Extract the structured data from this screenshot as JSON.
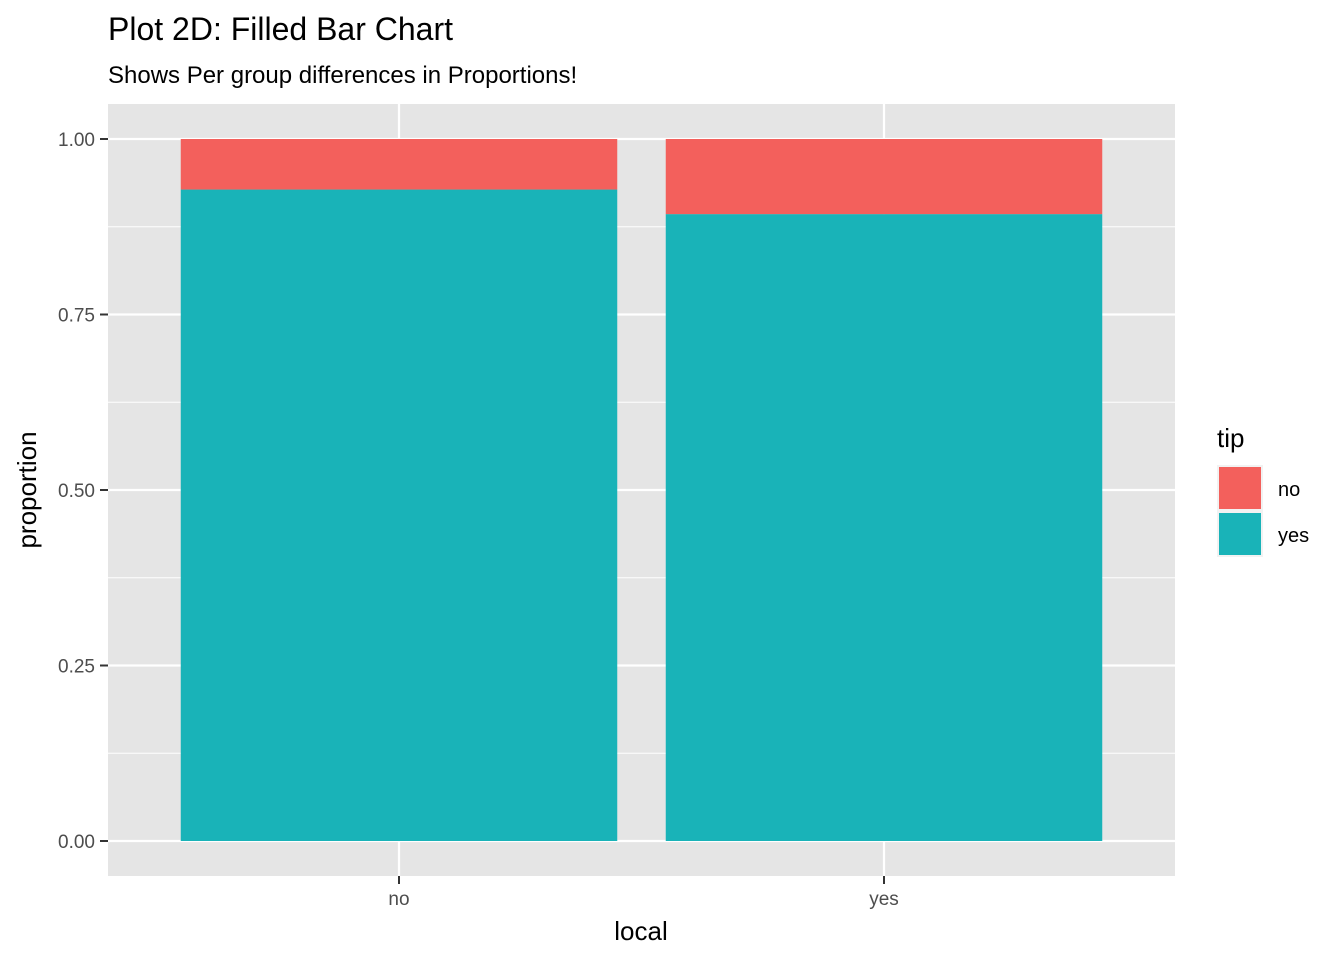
{
  "chart_data": {
    "type": "bar",
    "stacked": "fill",
    "title": "Plot 2D: Filled Bar Chart",
    "subtitle": "Shows Per group differences in Proportions!",
    "xlabel": "local",
    "ylabel": "proportion",
    "categories": [
      "no",
      "yes"
    ],
    "ylim": [
      0,
      1
    ],
    "yticks": [
      "0.00",
      "0.25",
      "0.50",
      "0.75",
      "1.00"
    ],
    "ytick_values": [
      0,
      0.25,
      0.5,
      0.75,
      1.0
    ],
    "grid": true,
    "legend": {
      "title": "tip",
      "placement": "right",
      "entries": [
        "no",
        "yes"
      ]
    },
    "series": [
      {
        "name": "no",
        "values": [
          0.072,
          0.107
        ],
        "color": "#f3605c"
      },
      {
        "name": "yes",
        "values": [
          0.928,
          0.893
        ],
        "color": "#19b3b8"
      }
    ],
    "colors": {
      "panel": "#e5e5e5",
      "grid": "#ffffff",
      "tick_text": "#4d4d4d",
      "tick_mark": "#333333"
    }
  }
}
